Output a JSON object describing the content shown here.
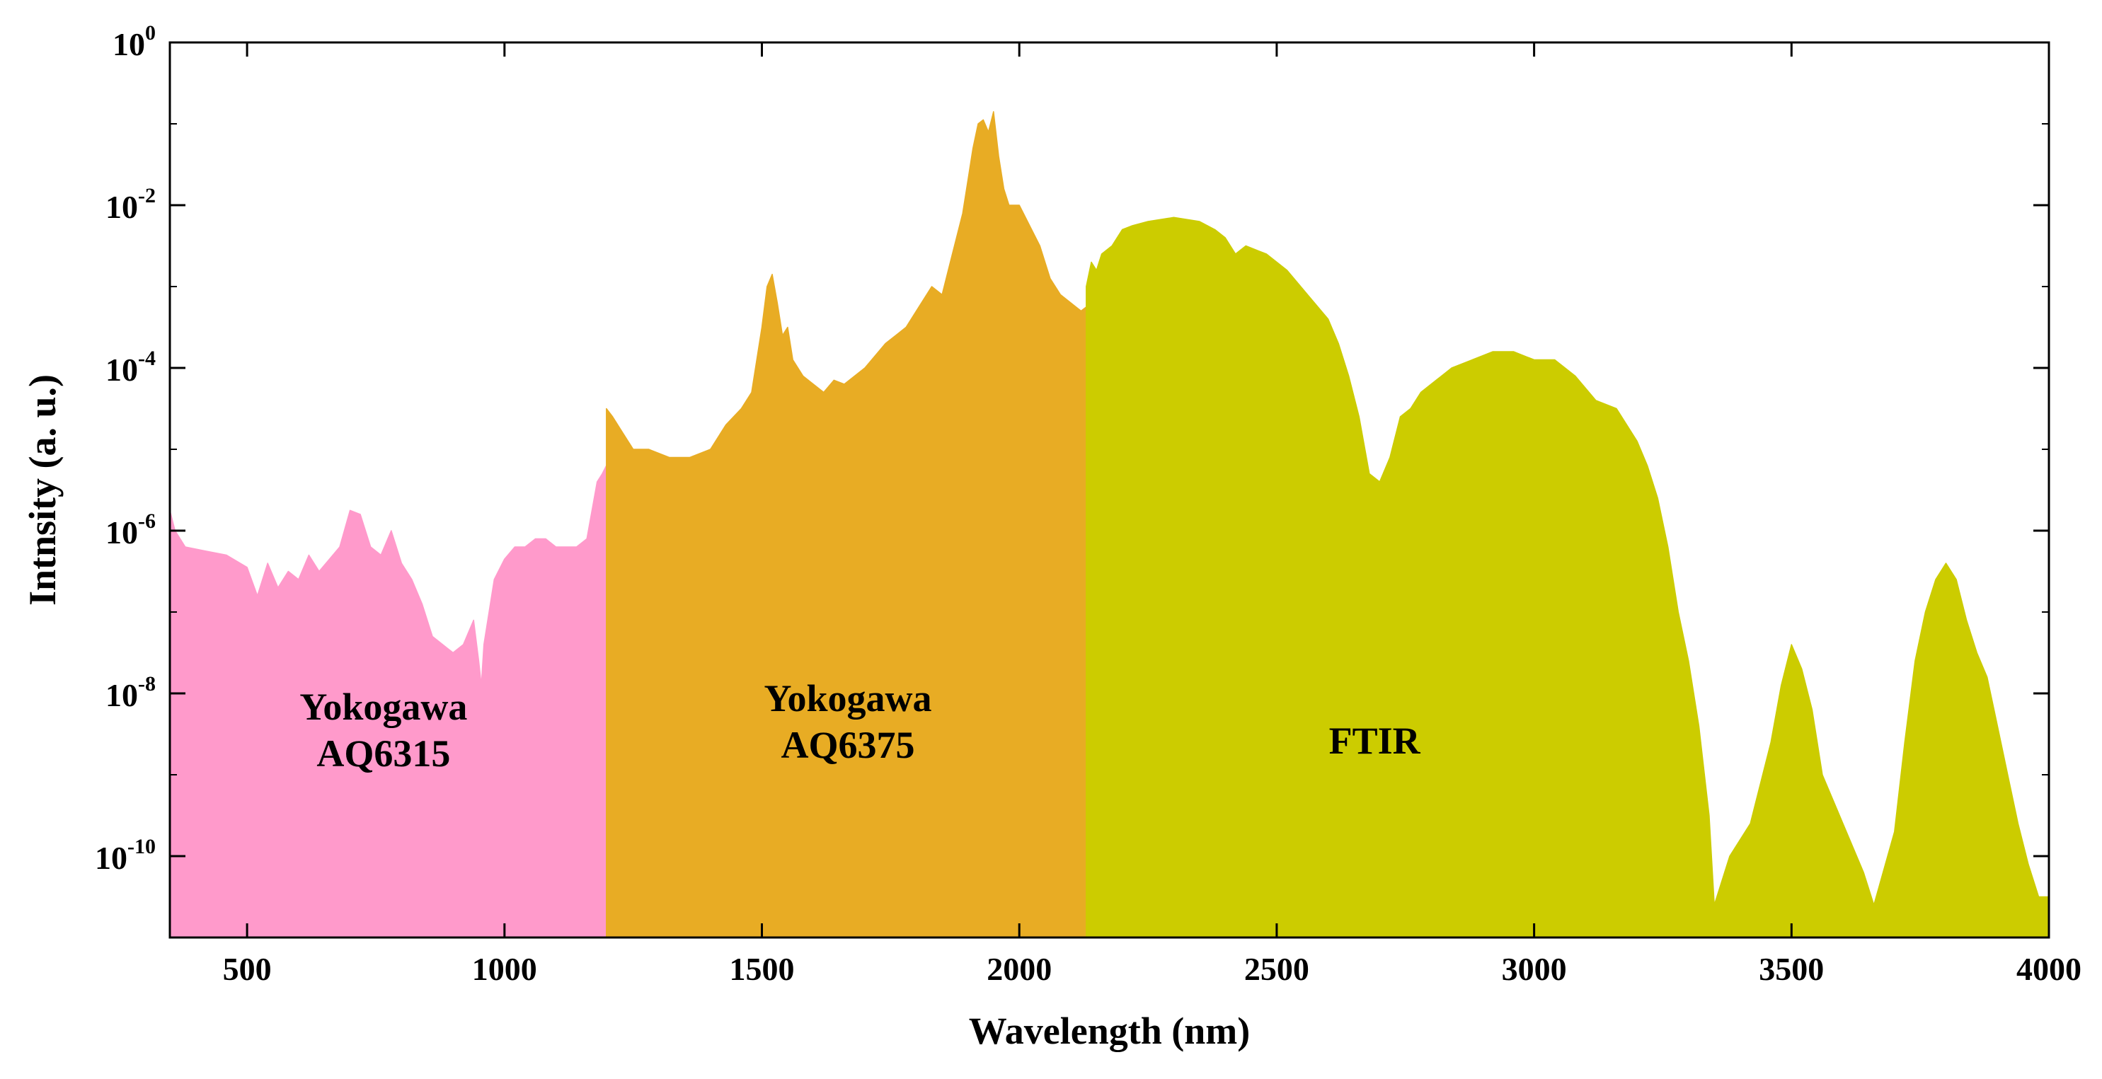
{
  "chart_data": {
    "type": "area",
    "title": "",
    "xlabel": "Wavelength (nm)",
    "ylabel": "Intnsity (a. u.)",
    "xlim": [
      350,
      4000
    ],
    "ylim_log10": [
      -11,
      0
    ],
    "y_scale": "log",
    "grid": false,
    "x_ticks": [
      500,
      1000,
      1500,
      2000,
      2500,
      3000,
      3500,
      4000
    ],
    "x_tick_labels": [
      "500",
      "1000",
      "1500",
      "2000",
      "2500",
      "3000",
      "3500",
      "4000"
    ],
    "y_ticks_log10": [
      0,
      -2,
      -4,
      -6,
      -8,
      -10
    ],
    "y_tick_base": "10",
    "y_tick_exponents": [
      "0",
      "-2",
      "-4",
      "-6",
      "-8",
      "-10"
    ],
    "series": [
      {
        "name": "Yokogawa AQ6315",
        "label_lines": [
          "Yokogawa",
          "AQ6315"
        ],
        "color": "#FF9ACB",
        "x": [
          350,
          360,
          380,
          420,
          460,
          500,
          520,
          540,
          560,
          580,
          600,
          620,
          640,
          660,
          680,
          700,
          720,
          740,
          760,
          780,
          800,
          820,
          840,
          860,
          880,
          900,
          920,
          940,
          950,
          955,
          960,
          980,
          1000,
          1020,
          1040,
          1060,
          1080,
          1100,
          1120,
          1140,
          1160,
          1180,
          1190,
          1198
        ],
        "log10_y": [
          -5.75,
          -6.0,
          -6.2,
          -6.25,
          -6.3,
          -6.45,
          -6.8,
          -6.4,
          -6.7,
          -6.5,
          -6.6,
          -6.3,
          -6.5,
          -6.35,
          -6.2,
          -5.75,
          -5.8,
          -6.2,
          -6.3,
          -6.0,
          -6.4,
          -6.6,
          -6.9,
          -7.3,
          -7.4,
          -7.5,
          -7.4,
          -7.1,
          -7.6,
          -7.9,
          -7.4,
          -6.6,
          -6.35,
          -6.2,
          -6.2,
          -6.1,
          -6.1,
          -6.2,
          -6.2,
          -6.2,
          -6.1,
          -5.4,
          -5.3,
          -5.2
        ]
      },
      {
        "name": "Yokogawa AQ6375",
        "label_lines": [
          "Yokogawa",
          "AQ6375"
        ],
        "color": "#E8AC24",
        "x": [
          1198,
          1210,
          1230,
          1250,
          1280,
          1320,
          1360,
          1400,
          1430,
          1460,
          1480,
          1500,
          1510,
          1520,
          1530,
          1540,
          1550,
          1560,
          1580,
          1600,
          1620,
          1640,
          1660,
          1700,
          1740,
          1780,
          1800,
          1830,
          1850,
          1870,
          1890,
          1900,
          1910,
          1920,
          1930,
          1940,
          1950,
          1960,
          1970,
          1980,
          2000,
          2040,
          2060,
          2080,
          2100,
          2120,
          2130
        ],
        "log10_y": [
          -4.5,
          -4.6,
          -4.8,
          -5.0,
          -5.0,
          -5.1,
          -5.1,
          -5.0,
          -4.7,
          -4.5,
          -4.3,
          -3.5,
          -3.0,
          -2.85,
          -3.2,
          -3.6,
          -3.5,
          -3.9,
          -4.1,
          -4.2,
          -4.3,
          -4.15,
          -4.2,
          -4.0,
          -3.7,
          -3.5,
          -3.3,
          -3.0,
          -3.1,
          -2.6,
          -2.1,
          -1.7,
          -1.3,
          -1.0,
          -0.95,
          -1.1,
          -0.85,
          -1.4,
          -1.8,
          -2.0,
          -2.0,
          -2.5,
          -2.9,
          -3.1,
          -3.2,
          -3.3,
          -3.25
        ]
      },
      {
        "name": "FTIR",
        "label_lines": [
          "FTIR"
        ],
        "color": "#CCCC00",
        "x": [
          2130,
          2140,
          2150,
          2160,
          2180,
          2200,
          2220,
          2250,
          2300,
          2350,
          2380,
          2400,
          2420,
          2440,
          2480,
          2520,
          2560,
          2600,
          2620,
          2640,
          2660,
          2680,
          2700,
          2720,
          2740,
          2760,
          2780,
          2800,
          2840,
          2880,
          2920,
          2960,
          3000,
          3040,
          3080,
          3120,
          3160,
          3200,
          3220,
          3240,
          3260,
          3280,
          3300,
          3320,
          3340,
          3350,
          3380,
          3420,
          3460,
          3480,
          3500,
          3520,
          3540,
          3560,
          3600,
          3640,
          3660,
          3700,
          3720,
          3740,
          3760,
          3780,
          3800,
          3820,
          3840,
          3860,
          3880,
          3900,
          3920,
          3940,
          3960,
          3980,
          4000
        ],
        "log10_y": [
          -3.0,
          -2.7,
          -2.8,
          -2.6,
          -2.5,
          -2.3,
          -2.25,
          -2.2,
          -2.15,
          -2.2,
          -2.3,
          -2.4,
          -2.6,
          -2.5,
          -2.6,
          -2.8,
          -3.1,
          -3.4,
          -3.7,
          -4.1,
          -4.6,
          -5.3,
          -5.4,
          -5.1,
          -4.6,
          -4.5,
          -4.3,
          -4.2,
          -4.0,
          -3.9,
          -3.8,
          -3.8,
          -3.9,
          -3.9,
          -4.1,
          -4.4,
          -4.5,
          -4.9,
          -5.2,
          -5.6,
          -6.2,
          -7.0,
          -7.6,
          -8.4,
          -9.5,
          -10.6,
          -10.0,
          -9.6,
          -8.6,
          -7.9,
          -7.4,
          -7.7,
          -8.2,
          -9.0,
          -9.6,
          -10.2,
          -10.6,
          -9.7,
          -8.6,
          -7.6,
          -7.0,
          -6.6,
          -6.4,
          -6.6,
          -7.1,
          -7.5,
          -7.8,
          -8.4,
          -9.0,
          -9.6,
          -10.1,
          -10.5,
          -10.5
        ]
      }
    ]
  }
}
